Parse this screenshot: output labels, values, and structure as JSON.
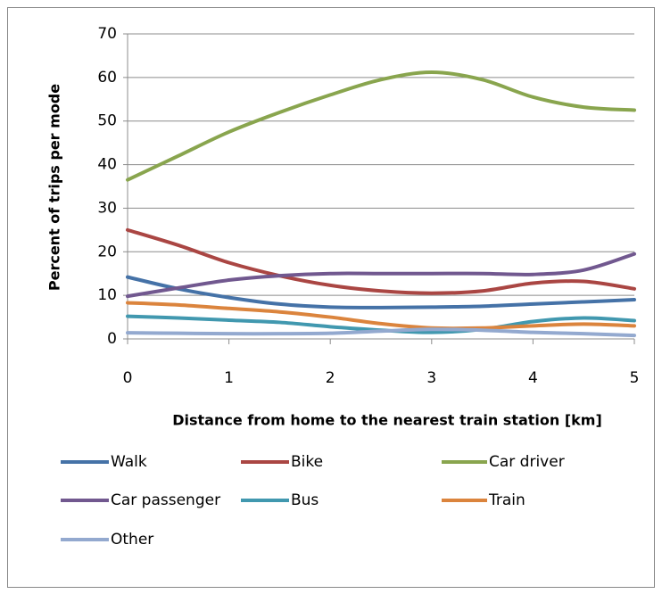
{
  "chart_data": {
    "type": "line",
    "x_label": "Distance from home to the nearest train station [km]",
    "y_label": "Percent of trips per mode",
    "x": [
      0,
      0.5,
      1,
      1.5,
      2,
      2.5,
      3,
      3.5,
      4,
      4.5,
      5
    ],
    "xlim": [
      0,
      5
    ],
    "xticks": [
      0,
      1,
      2,
      3,
      4,
      5
    ],
    "ylim": [
      0,
      70
    ],
    "yticks": [
      0,
      10,
      20,
      30,
      40,
      50,
      60,
      70
    ],
    "grid": true,
    "smooth": true,
    "legend": "bottom",
    "series": [
      {
        "name": "Walk",
        "color": "#4572a7",
        "values": [
          14.2,
          11.5,
          9.5,
          8,
          7.3,
          7.2,
          7.3,
          7.5,
          8,
          8.5,
          9
        ]
      },
      {
        "name": "Bike",
        "color": "#aa4643",
        "values": [
          25,
          21.5,
          17.5,
          14.5,
          12.3,
          11,
          10.5,
          11,
          12.8,
          13.2,
          11.5
        ]
      },
      {
        "name": "Car driver",
        "color": "#89a54e",
        "values": [
          36.5,
          42,
          47.5,
          52,
          56,
          59.5,
          61.2,
          59.5,
          55.5,
          53.2,
          52.5
        ]
      },
      {
        "name": "Car passenger",
        "color": "#71588f",
        "values": [
          9.8,
          11.7,
          13.5,
          14.5,
          15,
          15,
          15,
          15,
          14.8,
          15.8,
          19.5
        ]
      },
      {
        "name": "Bus",
        "color": "#4198af",
        "values": [
          5.2,
          4.8,
          4.3,
          3.8,
          2.8,
          2,
          1.5,
          2.2,
          4,
          4.8,
          4.2
        ]
      },
      {
        "name": "Train",
        "color": "#db843d",
        "values": [
          8.3,
          7.8,
          7,
          6.2,
          5,
          3.5,
          2.5,
          2.5,
          3,
          3.4,
          3
        ]
      },
      {
        "name": "Other",
        "color": "#93a9cf",
        "values": [
          1.4,
          1.3,
          1.2,
          1.2,
          1.3,
          1.8,
          2.2,
          2,
          1.5,
          1.2,
          0.8
        ]
      }
    ]
  }
}
